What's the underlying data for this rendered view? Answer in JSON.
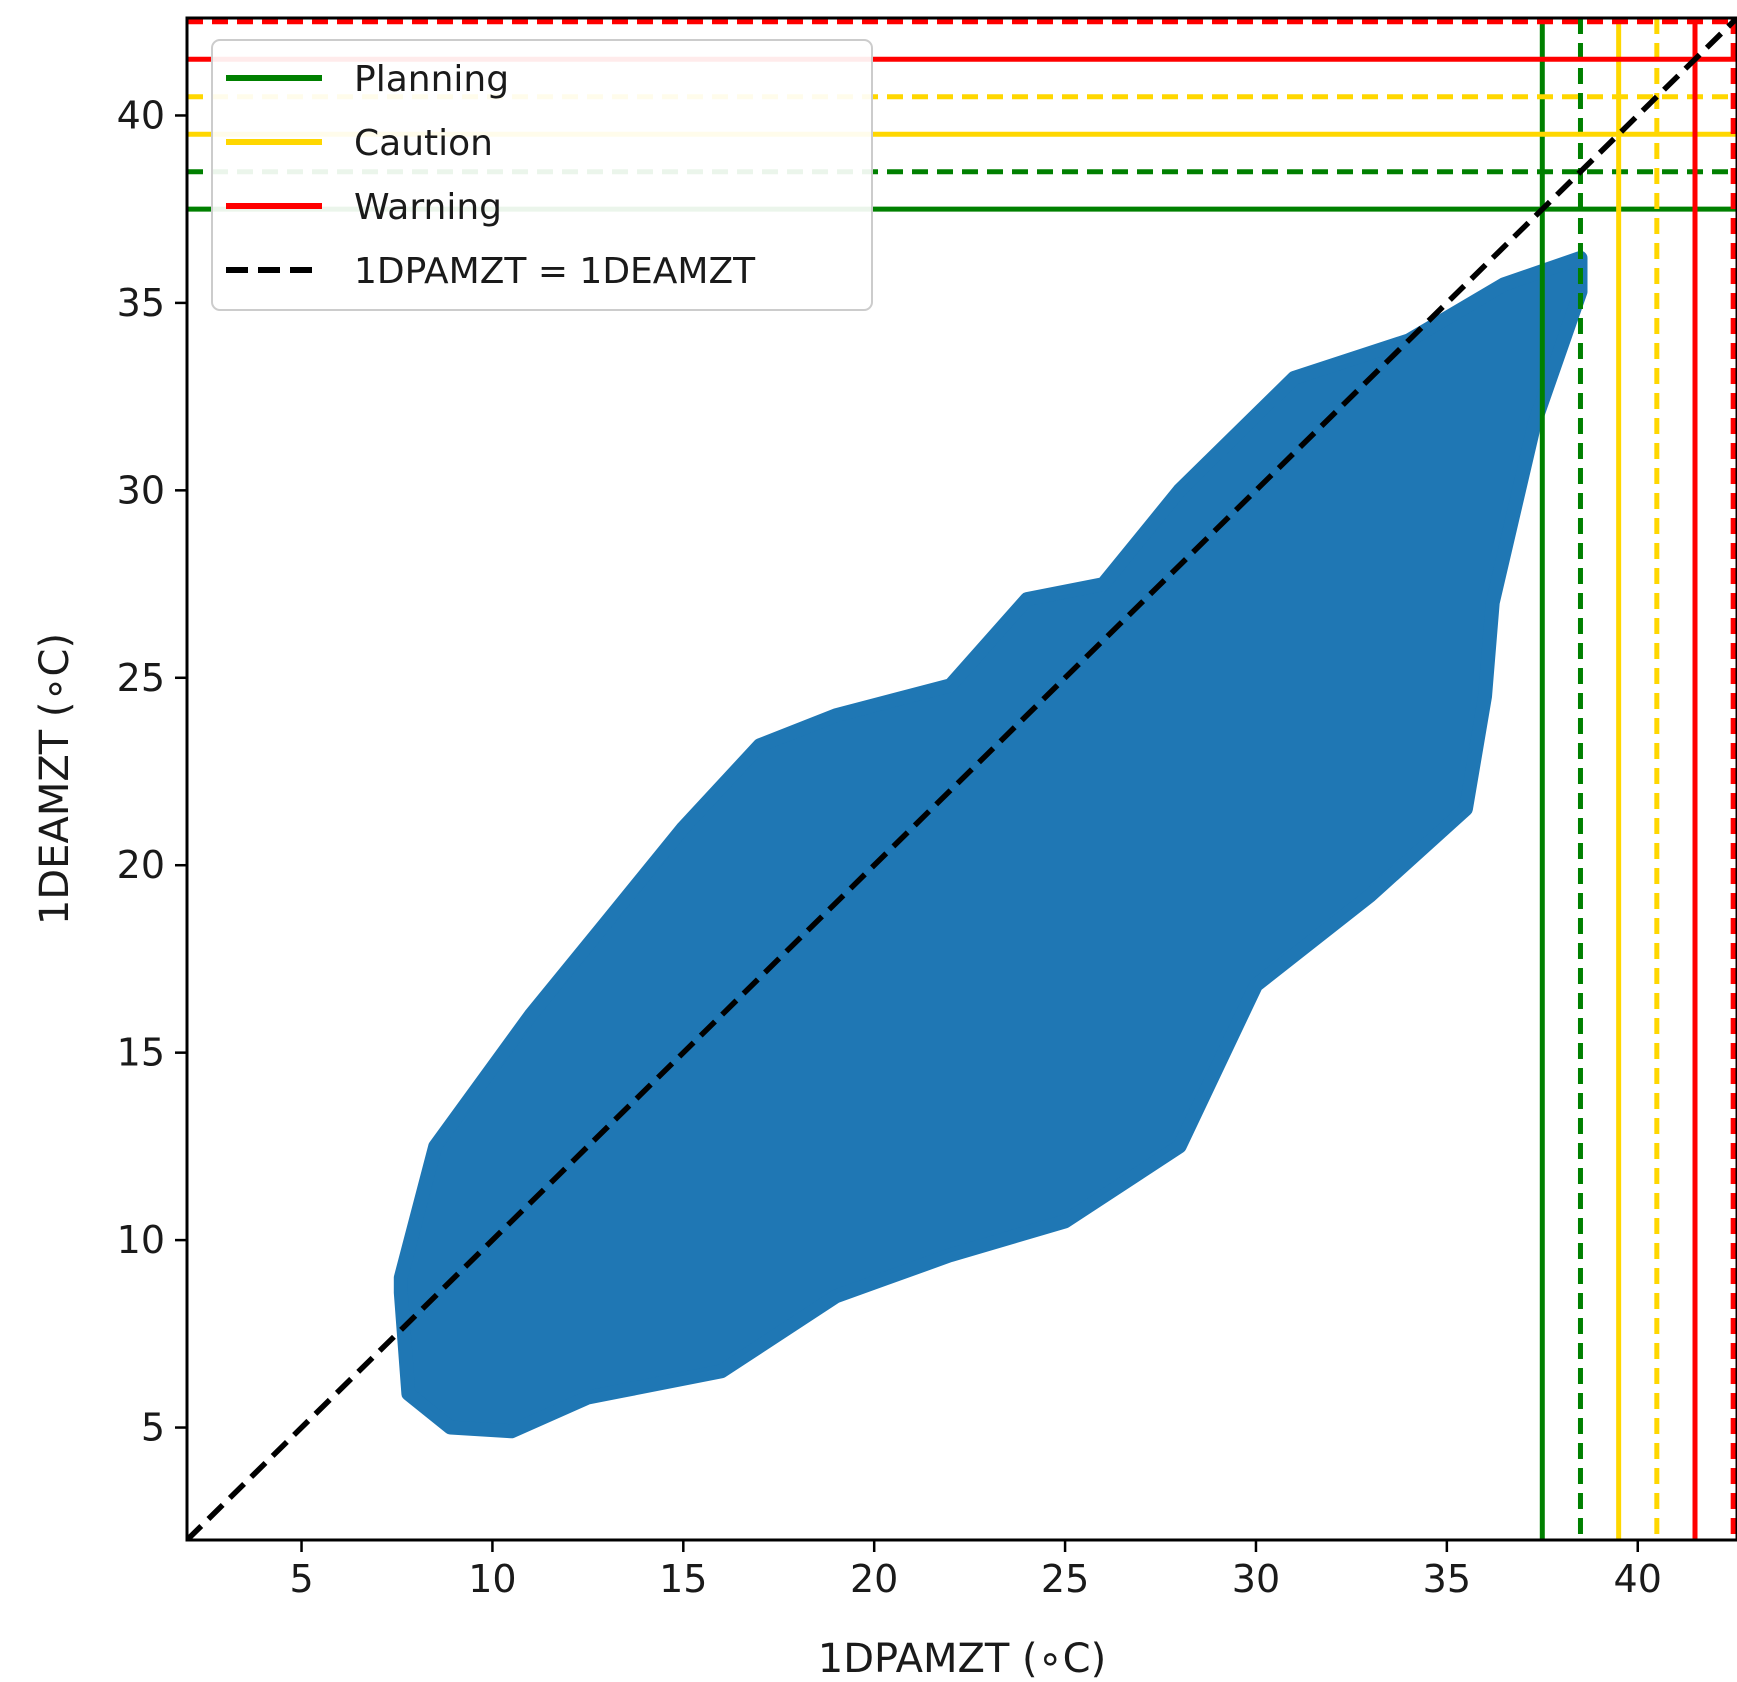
{
  "chart_data": {
    "type": "scatter",
    "title": "",
    "xlabel": "1DPAMZT (∘C)",
    "ylabel": "1DEAMZT (∘C)",
    "xlim": [
      2,
      42.6
    ],
    "ylim": [
      2,
      42.6
    ],
    "xticks": [
      5,
      10,
      15,
      20,
      25,
      30,
      35,
      40
    ],
    "yticks": [
      5,
      10,
      15,
      20,
      25,
      30,
      35,
      40
    ],
    "grid": false,
    "legend_placement": "top-left",
    "point_color": "#1f77b4",
    "legend": [
      {
        "label": "Planning",
        "color": "#008000",
        "dash": "solid"
      },
      {
        "label": "Caution",
        "color": "#ffd700",
        "dash": "solid"
      },
      {
        "label": "Warning",
        "color": "#ff0000",
        "dash": "solid"
      },
      {
        "label": "1DPAMZT = 1DEAMZT",
        "color": "#000000",
        "dash": "dashed"
      }
    ],
    "identity_line": {
      "label": "1DPAMZT = 1DEAMZT",
      "color": "#000000"
    },
    "limit_lines": [
      {
        "value": 37.5,
        "color": "#008000",
        "style": "solid"
      },
      {
        "value": 38.5,
        "color": "#008000",
        "style": "dashed"
      },
      {
        "value": 39.5,
        "color": "#ffd700",
        "style": "solid"
      },
      {
        "value": 40.5,
        "color": "#ffd700",
        "style": "dashed"
      },
      {
        "value": 41.5,
        "color": "#ff0000",
        "style": "solid"
      },
      {
        "value": 42.5,
        "color": "#ff0000",
        "style": "dashed"
      }
    ],
    "scatter_region": {
      "description_values": [
        [
          7.6,
          8.6
        ],
        [
          7.8,
          5.9
        ],
        [
          8.9,
          5.0
        ],
        [
          10.5,
          4.9
        ],
        [
          12.5,
          5.8
        ],
        [
          16,
          6.5
        ],
        [
          19,
          8.5
        ],
        [
          22,
          9.6
        ],
        [
          25,
          10.5
        ],
        [
          28,
          12.5
        ],
        [
          30,
          16.8
        ],
        [
          33,
          19.2
        ],
        [
          35.5,
          21.5
        ],
        [
          36,
          24.5
        ],
        [
          36.2,
          27.0
        ],
        [
          37.3,
          31.8
        ],
        [
          38.5,
          35.3
        ],
        [
          38.5,
          36.2
        ],
        [
          36.5,
          35.5
        ],
        [
          34,
          34.0
        ],
        [
          31,
          33.0
        ],
        [
          28,
          30.0
        ],
        [
          26,
          27.5
        ],
        [
          24,
          27.1
        ],
        [
          22,
          24.8
        ],
        [
          19,
          24.0
        ],
        [
          17,
          23.2
        ],
        [
          15,
          21.0
        ],
        [
          13,
          18.5
        ],
        [
          11,
          16.0
        ],
        [
          8.5,
          12.5
        ],
        [
          7.6,
          9.0
        ]
      ],
      "x_range": [
        7.6,
        38.5
      ],
      "y_range": [
        4.8,
        36.4
      ]
    }
  }
}
